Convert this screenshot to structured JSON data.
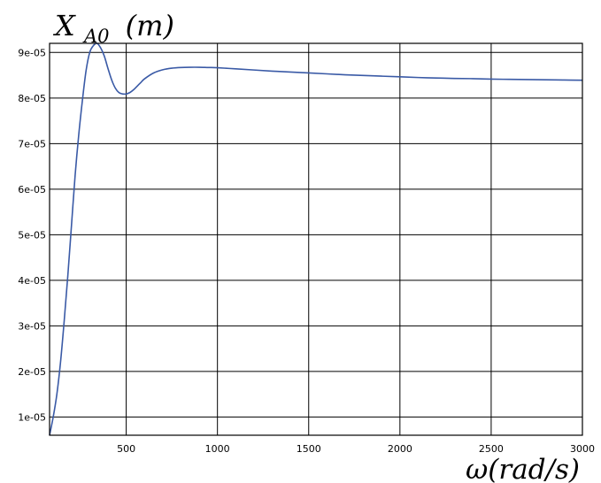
{
  "chart_data": {
    "type": "line",
    "title": "",
    "ylabel_main": "X",
    "ylabel_sub": "A0",
    "ylabel_unit": "(m)",
    "xlabel": "ω(rad/s)",
    "xlim": [
      80,
      3000
    ],
    "ylim": [
      6e-06,
      9.2e-05
    ],
    "x_ticks": [
      500,
      1000,
      1500,
      2000,
      2500,
      3000
    ],
    "x_tick_labels": [
      "500",
      "1000",
      "1500",
      "2000",
      "2500",
      "3000"
    ],
    "y_ticks": [
      1e-05,
      2e-05,
      3e-05,
      4e-05,
      5e-05,
      6e-05,
      7e-05,
      8e-05,
      9e-05
    ],
    "y_tick_labels": [
      "1e-05",
      "2e-05",
      "3e-05",
      "4e-05",
      "5e-05",
      "6e-05",
      "7e-05",
      "8e-05",
      "9e-05"
    ],
    "grid": true,
    "legend": "none",
    "colors": {
      "line": "#3a5aa6",
      "grid": "#000000",
      "frame": "#000000"
    },
    "series": [
      {
        "x": [
          80,
          100,
          120,
          140,
          160,
          180,
          200,
          220,
          240,
          260,
          280,
          300,
          320,
          340,
          360,
          380,
          400,
          420,
          440,
          460,
          480,
          500,
          520,
          540,
          560,
          580,
          600,
          650,
          700,
          750,
          800,
          850,
          900,
          950,
          1000,
          1100,
          1200,
          1300,
          1400,
          1500,
          1600,
          1700,
          1800,
          1900,
          2000,
          2100,
          2200,
          2300,
          2400,
          2500,
          2600,
          2700,
          2800,
          2900,
          3000
        ],
        "y": [
          6e-06,
          1e-05,
          1.5e-05,
          2.2e-05,
          3.1e-05,
          4.1e-05,
          5.2e-05,
          6.3e-05,
          7.2e-05,
          7.95e-05,
          8.6e-05,
          9e-05,
          9.15e-05,
          9.2e-05,
          9.1e-05,
          8.92e-05,
          8.65e-05,
          8.4e-05,
          8.22e-05,
          8.12e-05,
          8.09e-05,
          8.09e-05,
          8.12e-05,
          8.18e-05,
          8.26e-05,
          8.34e-05,
          8.42e-05,
          8.55e-05,
          8.62e-05,
          8.655e-05,
          8.67e-05,
          8.675e-05,
          8.675e-05,
          8.67e-05,
          8.665e-05,
          8.64e-05,
          8.615e-05,
          8.59e-05,
          8.57e-05,
          8.55e-05,
          8.53e-05,
          8.51e-05,
          8.495e-05,
          8.48e-05,
          8.465e-05,
          8.45e-05,
          8.44e-05,
          8.43e-05,
          8.425e-05,
          8.415e-05,
          8.41e-05,
          8.405e-05,
          8.4e-05,
          8.395e-05,
          8.39e-05
        ]
      }
    ]
  }
}
